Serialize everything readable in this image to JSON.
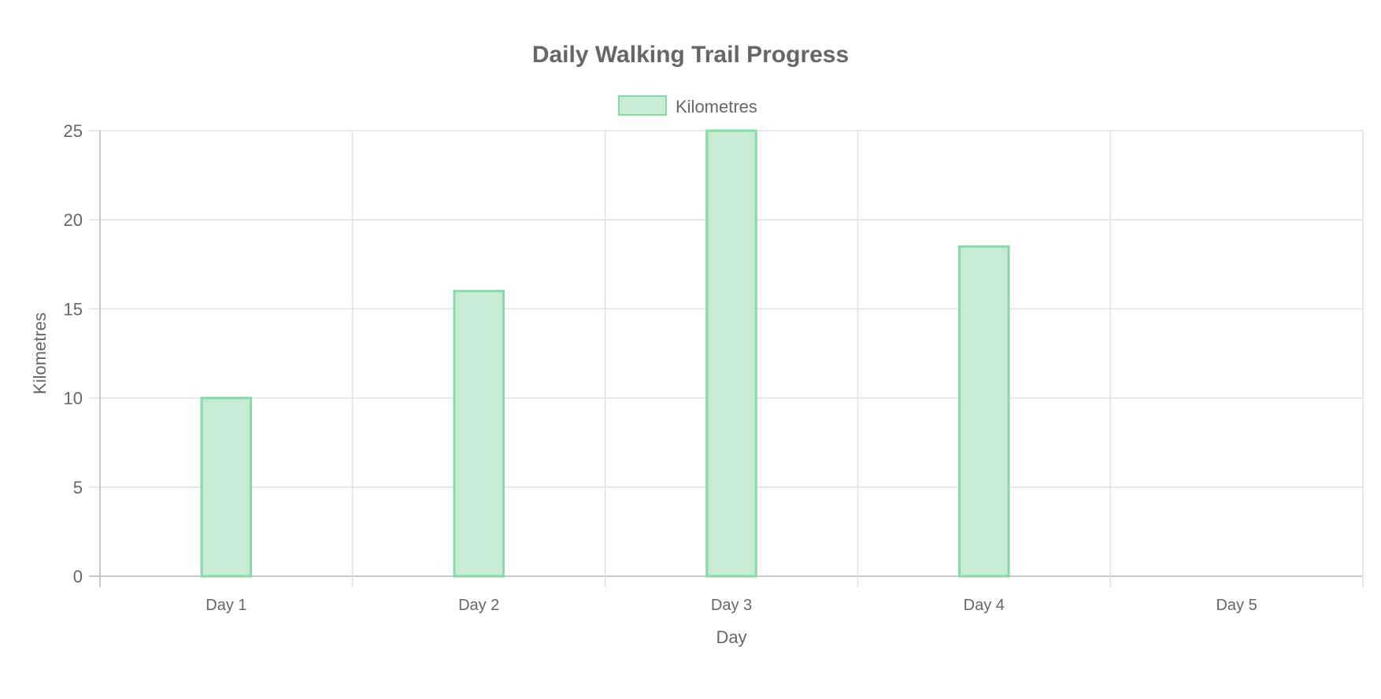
{
  "chart_data": {
    "type": "bar",
    "title": "Daily Walking Trail Progress",
    "xlabel": "Day",
    "ylabel": "Kilometres",
    "categories": [
      "Day 1",
      "Day 2",
      "Day 3",
      "Day 4",
      "Day 5"
    ],
    "series": [
      {
        "name": "Kilometres",
        "values": [
          10,
          16,
          25,
          18.5,
          0
        ],
        "fill_color": "#c6ecd4",
        "border_color": "#86dba5"
      }
    ],
    "ylim": [
      0,
      25
    ],
    "y_ticks": [
      0,
      5,
      10,
      15,
      20,
      25
    ],
    "grid": true,
    "legend_position": "top"
  }
}
